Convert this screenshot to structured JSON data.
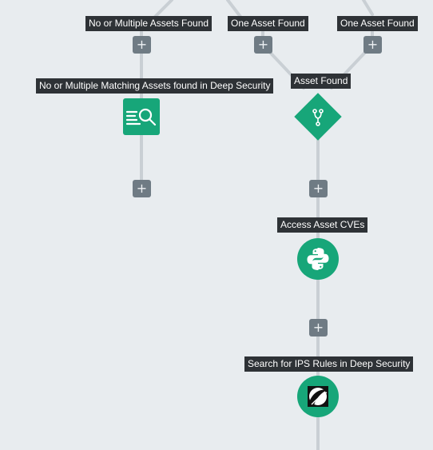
{
  "edges": {
    "no_or_multiple_assets_found": "No or Multiple Assets Found",
    "one_asset_found_a": "One Asset Found",
    "one_asset_found_b": "One Asset Found"
  },
  "nodes": {
    "no_match": "No or Multiple Matching Assets found in Deep Security",
    "asset_found": "Asset Found",
    "access_cves": "Access Asset CVEs",
    "search_ips": "Search for IPS Rules in Deep Security"
  },
  "add_step_label": "+",
  "icons": {
    "no_match": "list-search-icon",
    "asset_found": "branch-icon",
    "access_cves": "python-icon",
    "search_ips": "trend-micro-icon"
  },
  "colors": {
    "background": "#e8ecef",
    "node": "#17a679",
    "label_bg": "#2e3236",
    "add_button": "#6f7b84",
    "connector": "#c9cfd4"
  }
}
